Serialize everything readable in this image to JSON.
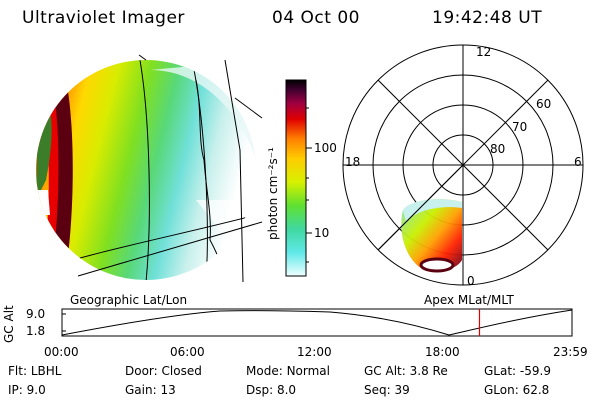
{
  "header": {
    "instrument": "Ultraviolet Imager",
    "date": "04 Oct 00",
    "time": "19:42:48 UT"
  },
  "colorbar": {
    "unit_label": "photon cm⁻²s⁻¹",
    "ticks": [
      "100",
      "10"
    ]
  },
  "polar": {
    "lat_labels": [
      "60",
      "70",
      "80"
    ],
    "mlt_labels": {
      "top": "12",
      "left": "18",
      "right": "6",
      "bottom": "0"
    }
  },
  "panels": {
    "left_caption": "Geographic Lat/Lon",
    "right_caption": "Apex MLat/MLT"
  },
  "altitude_plot": {
    "axis_title": "GC Alt",
    "y_ticks": [
      "9.0",
      "1.8"
    ],
    "x_ticks": [
      "00:00",
      "06:00",
      "12:00",
      "18:00",
      "23:59"
    ],
    "marker_time_fraction": 0.8186
  },
  "status": {
    "row1": [
      {
        "label": "Flt:",
        "value": "LBHL"
      },
      {
        "label": "Door:",
        "value": "Closed"
      },
      {
        "label": "Mode:",
        "value": "Normal"
      },
      {
        "label": "GC Alt:",
        "value": "3.8 Re"
      },
      {
        "label": "GLat:",
        "value": "-59.9"
      }
    ],
    "row2": [
      {
        "label": "IP:",
        "value": "9.0"
      },
      {
        "label": "Gain:",
        "value": "13"
      },
      {
        "label": "Dsp:",
        "value": "8.0"
      },
      {
        "label": "Seq:",
        "value": "39"
      },
      {
        "label": "GLon:",
        "value": "62.8"
      }
    ]
  },
  "colors": {
    "marker": "#e00000"
  }
}
